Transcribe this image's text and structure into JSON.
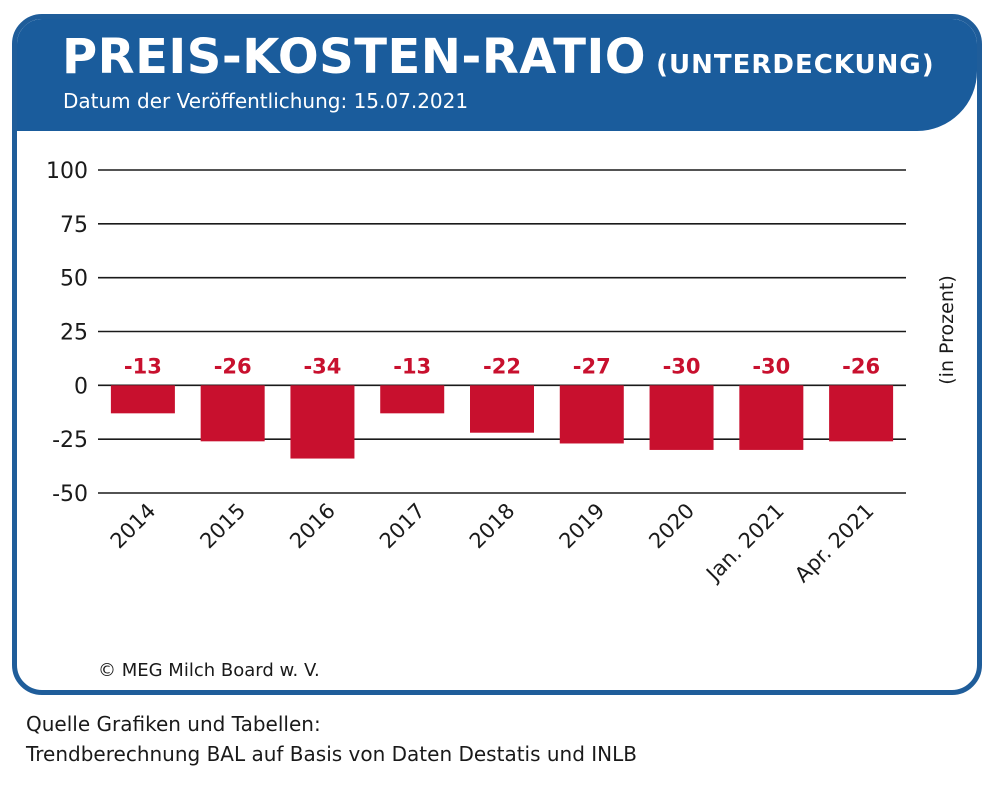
{
  "header": {
    "title": "PREIS-KOSTEN-RATIO",
    "title_suffix": "(UNTERDECKUNG)",
    "date_line": "Datum der Veröffentlichung: 15.07.2021"
  },
  "copyright": "© MEG Milch Board w. V.",
  "source": {
    "line1": "Quelle Grafiken und Tabellen:",
    "line2": "Trendberechnung BAL auf Basis von Daten Destatis und INLB"
  },
  "colors": {
    "header_blue": "#1a5c9c",
    "bar_red": "#c8102e"
  },
  "chart_data": {
    "type": "bar",
    "title": "PREIS-KOSTEN-RATIO (UNTERDECKUNG)",
    "categories": [
      "2014",
      "2015",
      "2016",
      "2017",
      "2018",
      "2019",
      "2020",
      "Jan. 2021",
      "Apr. 2021"
    ],
    "values": [
      -13,
      -26,
      -34,
      -13,
      -22,
      -27,
      -30,
      -30,
      -26
    ],
    "data_labels": [
      "-13",
      "-26",
      "-34",
      "-13",
      "-22",
      "-27",
      "-30",
      "-30",
      "-26"
    ],
    "ylabel": "(in Prozent)",
    "xlabel": "",
    "ylim": [
      -50,
      100
    ],
    "yticks": [
      100,
      75,
      50,
      25,
      0,
      -25,
      -50
    ],
    "grid": true
  }
}
